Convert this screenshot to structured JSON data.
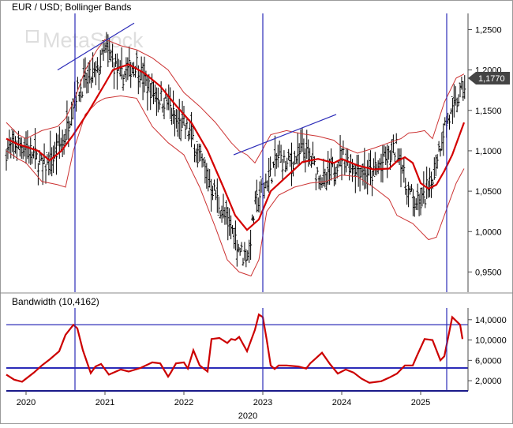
{
  "chart_data": [
    {
      "panel": "price",
      "type": "ohlc",
      "title": "EUR / USD; Bollinger Bands",
      "watermark": "MetaStock",
      "y_ticks": [
        "1,2500",
        "1,2000",
        "1,1500",
        "1,1000",
        "1,0500",
        "1,0000",
        "0,9500"
      ],
      "y_tick_values": [
        1.25,
        1.2,
        1.15,
        1.1,
        1.05,
        1.0,
        0.95
      ],
      "ylim": [
        0.925,
        1.27
      ],
      "last_price": 1.177,
      "last_price_label": "1,1770",
      "series": [
        {
          "role": "price_path",
          "x": [
            2019.75,
            2019.9,
            2020.0,
            2020.1,
            2020.2,
            2020.35,
            2020.5,
            2020.62,
            2020.75,
            2020.9,
            2021.0,
            2021.1,
            2021.2,
            2021.3,
            2021.4,
            2021.5,
            2021.6,
            2021.7,
            2021.8,
            2021.9,
            2022.0,
            2022.1,
            2022.2,
            2022.3,
            2022.4,
            2022.5,
            2022.6,
            2022.7,
            2022.75,
            2022.82,
            2022.9,
            2023.0,
            2023.1,
            2023.2,
            2023.3,
            2023.4,
            2023.5,
            2023.6,
            2023.7,
            2023.8,
            2023.9,
            2024.0,
            2024.1,
            2024.2,
            2024.3,
            2024.4,
            2024.5,
            2024.6,
            2024.7,
            2024.75,
            2024.8,
            2024.9,
            2025.0,
            2025.1,
            2025.2,
            2025.3,
            2025.4,
            2025.5,
            2025.55
          ],
          "values": [
            1.1,
            1.11,
            1.105,
            1.095,
            1.08,
            1.09,
            1.12,
            1.17,
            1.185,
            1.195,
            1.225,
            1.21,
            1.19,
            1.2,
            1.21,
            1.185,
            1.175,
            1.165,
            1.16,
            1.135,
            1.13,
            1.12,
            1.09,
            1.07,
            1.045,
            1.02,
            1.005,
            0.98,
            0.97,
            0.975,
            1.03,
            1.055,
            1.07,
            1.095,
            1.08,
            1.09,
            1.1,
            1.09,
            1.07,
            1.06,
            1.08,
            1.095,
            1.085,
            1.08,
            1.075,
            1.07,
            1.085,
            1.09,
            1.105,
            1.09,
            1.06,
            1.04,
            1.035,
            1.05,
            1.09,
            1.13,
            1.145,
            1.17,
            1.18
          ]
        },
        {
          "role": "middle_band",
          "x": [
            2019.75,
            2019.9,
            2020.0,
            2020.15,
            2020.3,
            2020.45,
            2020.6,
            2020.8,
            2021.0,
            2021.1,
            2021.3,
            2021.5,
            2021.7,
            2021.9,
            2022.1,
            2022.3,
            2022.5,
            2022.65,
            2022.8,
            2022.95,
            2023.1,
            2023.3,
            2023.5,
            2023.7,
            2023.9,
            2024.0,
            2024.2,
            2024.4,
            2024.6,
            2024.7,
            2024.8,
            2024.9,
            2025.0,
            2025.1,
            2025.2,
            2025.3,
            2025.4,
            2025.55
          ],
          "values": [
            1.115,
            1.108,
            1.105,
            1.1,
            1.088,
            1.1,
            1.12,
            1.15,
            1.183,
            1.2,
            1.207,
            1.196,
            1.18,
            1.156,
            1.134,
            1.1,
            1.055,
            1.02,
            1.002,
            1.015,
            1.05,
            1.068,
            1.086,
            1.09,
            1.085,
            1.09,
            1.082,
            1.077,
            1.078,
            1.087,
            1.092,
            1.085,
            1.06,
            1.053,
            1.058,
            1.075,
            1.095,
            1.135
          ]
        },
        {
          "role": "upper_band",
          "x": [
            2019.75,
            2019.9,
            2020.0,
            2020.2,
            2020.4,
            2020.5,
            2020.6,
            2020.75,
            2020.9,
            2021.0,
            2021.2,
            2021.4,
            2021.6,
            2021.8,
            2022.0,
            2022.2,
            2022.4,
            2022.6,
            2022.7,
            2022.8,
            2022.9,
            2023.0,
            2023.1,
            2023.3,
            2023.5,
            2023.7,
            2023.9,
            2024.0,
            2024.2,
            2024.4,
            2024.6,
            2024.75,
            2024.85,
            2024.95,
            2025.05,
            2025.15,
            2025.3,
            2025.45,
            2025.55
          ],
          "values": [
            1.135,
            1.12,
            1.115,
            1.125,
            1.13,
            1.14,
            1.16,
            1.2,
            1.225,
            1.238,
            1.23,
            1.225,
            1.215,
            1.2,
            1.172,
            1.155,
            1.135,
            1.11,
            1.1,
            1.095,
            1.085,
            1.102,
            1.12,
            1.125,
            1.121,
            1.118,
            1.113,
            1.105,
            1.097,
            1.103,
            1.11,
            1.115,
            1.122,
            1.123,
            1.125,
            1.115,
            1.16,
            1.19,
            1.195
          ]
        },
        {
          "role": "lower_band",
          "x": [
            2019.75,
            2019.9,
            2020.0,
            2020.2,
            2020.4,
            2020.5,
            2020.6,
            2020.75,
            2020.9,
            2021.0,
            2021.2,
            2021.4,
            2021.6,
            2021.8,
            2022.0,
            2022.2,
            2022.4,
            2022.55,
            2022.7,
            2022.85,
            2022.95,
            2023.05,
            2023.2,
            2023.4,
            2023.6,
            2023.8,
            2024.0,
            2024.2,
            2024.4,
            2024.6,
            2024.7,
            2024.8,
            2024.9,
            2025.0,
            2025.1,
            2025.2,
            2025.3,
            2025.45,
            2025.55
          ],
          "values": [
            1.1,
            1.09,
            1.085,
            1.062,
            1.058,
            1.055,
            1.1,
            1.145,
            1.16,
            1.165,
            1.168,
            1.165,
            1.13,
            1.11,
            1.095,
            1.055,
            1.005,
            0.965,
            0.95,
            0.945,
            0.965,
            1.025,
            1.045,
            1.055,
            1.06,
            1.062,
            1.07,
            1.068,
            1.055,
            1.04,
            1.02,
            1.015,
            1.01,
            1.0,
            0.99,
            0.993,
            1.02,
            1.06,
            1.078
          ]
        }
      ],
      "trendlines": [
        {
          "x": [
            2020.4,
            2021.37
          ],
          "values": [
            1.2,
            1.258
          ]
        },
        {
          "x": [
            2022.63,
            2023.93
          ],
          "values": [
            1.095,
            1.145
          ]
        }
      ]
    },
    {
      "panel": "indicator",
      "type": "line",
      "title": "Bandwidth (10,4162)",
      "y_ticks": [
        "14,0000",
        "10,0000",
        "6,0000",
        "2,0000"
      ],
      "y_tick_values": [
        14,
        10,
        6,
        2
      ],
      "ylim": [
        0,
        16.3
      ],
      "hlines": [
        13.0,
        4.5
      ],
      "x": [
        2019.75,
        2019.85,
        2019.95,
        2020.1,
        2020.2,
        2020.3,
        2020.42,
        2020.5,
        2020.6,
        2020.65,
        2020.72,
        2020.82,
        2020.88,
        2020.95,
        2021.05,
        2021.2,
        2021.3,
        2021.45,
        2021.6,
        2021.7,
        2021.8,
        2021.83,
        2021.9,
        2022.0,
        2022.05,
        2022.12,
        2022.2,
        2022.3,
        2022.35,
        2022.45,
        2022.55,
        2022.6,
        2022.65,
        2022.7,
        2022.8,
        2022.9,
        2022.95,
        2023.0,
        2023.05,
        2023.1,
        2023.15,
        2023.2,
        2023.3,
        2023.45,
        2023.55,
        2023.6,
        2023.75,
        2023.85,
        2023.95,
        2024.05,
        2024.15,
        2024.25,
        2024.35,
        2024.5,
        2024.6,
        2024.7,
        2024.8,
        2024.9,
        2024.95,
        2025.05,
        2025.15,
        2025.25,
        2025.3,
        2025.4,
        2025.5,
        2025.53
      ],
      "values": [
        3.2,
        2.2,
        1.8,
        3.6,
        5.0,
        6.2,
        7.8,
        11.0,
        13.0,
        12.3,
        8.0,
        3.5,
        4.8,
        5.3,
        3.2,
        4.2,
        3.8,
        4.5,
        5.6,
        5.4,
        2.8,
        3.5,
        5.4,
        5.6,
        4.4,
        8.0,
        5.0,
        3.8,
        10.2,
        10.4,
        9.4,
        10.2,
        10.0,
        10.6,
        7.8,
        12.0,
        15.0,
        14.5,
        10.0,
        5.0,
        4.3,
        5.0,
        5.0,
        4.8,
        4.4,
        5.4,
        7.5,
        5.3,
        3.4,
        4.2,
        3.6,
        2.4,
        1.6,
        1.9,
        2.6,
        3.4,
        5.0,
        5.0,
        6.8,
        10.2,
        10.0,
        6.0,
        6.8,
        14.5,
        13.0,
        10.2
      ]
    }
  ],
  "x_ticks": [
    "2020",
    "2021",
    "2022",
    "2023",
    "2024",
    "2025"
  ],
  "x_tick_values": [
    2020,
    2021,
    2022,
    2023,
    2024,
    2025
  ],
  "x_axis_year_label": "2020",
  "vlines": [
    2020.62,
    2023.0,
    2025.33
  ],
  "colors": {
    "price_bars": "#000000",
    "bands": "#cc3333",
    "middle_band": "#d40000",
    "bandwidth": "#cc0000",
    "markers": "#2b2bb8",
    "axis": "#4a4a4a",
    "watermark": "#dcdcdc"
  }
}
